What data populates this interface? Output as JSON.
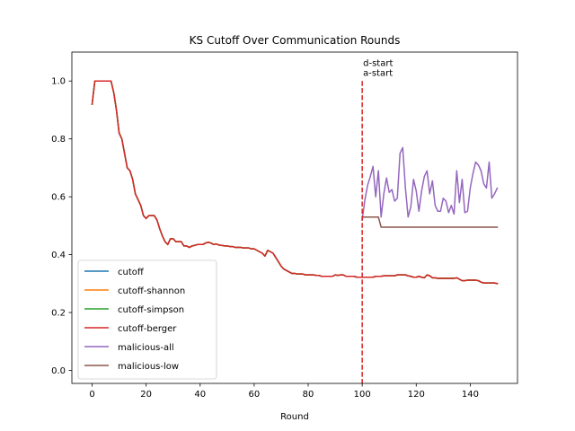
{
  "chart_data": {
    "type": "line",
    "title": "KS Cutoff Over Communication Rounds",
    "xlabel": "Round",
    "ylabel": "",
    "xlim": [
      -7.5,
      157.5
    ],
    "ylim": [
      -0.045,
      1.1
    ],
    "xticks": [
      0,
      20,
      40,
      60,
      80,
      100,
      120,
      140
    ],
    "yticks": [
      0.0,
      0.2,
      0.4,
      0.6,
      0.8,
      1.0
    ],
    "grid": false,
    "legend_position": "lower-left",
    "vline": {
      "x": 100,
      "color": "#d62728",
      "style": "dashed"
    },
    "annotations": [
      {
        "text": "d-start",
        "x": 100,
        "y": 1.065
      },
      {
        "text": "a-start",
        "x": 100,
        "y": 1.03
      }
    ],
    "series": [
      {
        "name": "cutoff",
        "color": "#1f77b4",
        "ref": "main"
      },
      {
        "name": "cutoff-shannon",
        "color": "#ff7f0e",
        "ref": "main"
      },
      {
        "name": "cutoff-simpson",
        "color": "#2ca02c",
        "ref": "main"
      },
      {
        "name": "cutoff-berger",
        "color": "#d62728",
        "ref": "main"
      },
      {
        "name": "malicious-all",
        "color": "#9467bd",
        "x": [
          100,
          101,
          102,
          103,
          104,
          105,
          106,
          107,
          108,
          109,
          110,
          111,
          112,
          113,
          114,
          115,
          116,
          117,
          118,
          119,
          120,
          121,
          122,
          123,
          124,
          125,
          126,
          127,
          128,
          129,
          130,
          131,
          132,
          133,
          134,
          135,
          136,
          137,
          138,
          139,
          140,
          141,
          142,
          143,
          144,
          145,
          146,
          147,
          148,
          149,
          150
        ],
        "values": [
          0.52,
          0.59,
          0.64,
          0.67,
          0.705,
          0.6,
          0.69,
          0.53,
          0.61,
          0.665,
          0.615,
          0.625,
          0.585,
          0.595,
          0.75,
          0.77,
          0.63,
          0.53,
          0.565,
          0.66,
          0.62,
          0.55,
          0.62,
          0.67,
          0.69,
          0.61,
          0.655,
          0.57,
          0.55,
          0.55,
          0.595,
          0.585,
          0.545,
          0.57,
          0.54,
          0.69,
          0.58,
          0.66,
          0.545,
          0.55,
          0.63,
          0.68,
          0.72,
          0.71,
          0.69,
          0.645,
          0.63,
          0.72,
          0.595,
          0.61,
          0.63
        ]
      },
      {
        "name": "malicious-low",
        "color": "#8c564b",
        "x": [
          100,
          106,
          107,
          150
        ],
        "values": [
          0.53,
          0.53,
          0.495,
          0.495
        ]
      }
    ],
    "main_series": {
      "x": [
        0,
        1,
        2,
        3,
        4,
        5,
        6,
        7,
        8,
        9,
        10,
        11,
        12,
        13,
        14,
        15,
        16,
        17,
        18,
        19,
        20,
        21,
        22,
        23,
        24,
        25,
        26,
        27,
        28,
        29,
        30,
        31,
        32,
        33,
        34,
        35,
        36,
        37,
        38,
        39,
        40,
        41,
        42,
        43,
        44,
        45,
        46,
        47,
        48,
        49,
        50,
        51,
        52,
        53,
        54,
        55,
        56,
        57,
        58,
        59,
        60,
        61,
        62,
        63,
        64,
        65,
        66,
        67,
        68,
        69,
        70,
        71,
        72,
        73,
        74,
        75,
        76,
        77,
        78,
        79,
        80,
        81,
        82,
        83,
        84,
        85,
        86,
        87,
        88,
        89,
        90,
        91,
        92,
        93,
        94,
        95,
        96,
        97,
        98,
        99,
        100,
        101,
        102,
        103,
        104,
        105,
        106,
        107,
        108,
        109,
        110,
        111,
        112,
        113,
        114,
        115,
        116,
        117,
        118,
        119,
        120,
        121,
        122,
        123,
        124,
        125,
        126,
        127,
        128,
        129,
        130,
        131,
        132,
        133,
        134,
        135,
        136,
        137,
        138,
        139,
        140,
        141,
        142,
        143,
        144,
        145,
        146,
        147,
        148,
        149,
        150
      ],
      "values": [
        0.92,
        1.0,
        1.0,
        1.0,
        1.0,
        1.0,
        1.0,
        1.0,
        0.96,
        0.9,
        0.82,
        0.8,
        0.75,
        0.7,
        0.69,
        0.66,
        0.61,
        0.59,
        0.57,
        0.535,
        0.525,
        0.535,
        0.535,
        0.535,
        0.52,
        0.49,
        0.465,
        0.445,
        0.435,
        0.455,
        0.455,
        0.445,
        0.445,
        0.445,
        0.43,
        0.43,
        0.425,
        0.43,
        0.432,
        0.435,
        0.435,
        0.435,
        0.44,
        0.443,
        0.44,
        0.435,
        0.437,
        0.433,
        0.432,
        0.43,
        0.43,
        0.428,
        0.428,
        0.425,
        0.425,
        0.425,
        0.423,
        0.423,
        0.423,
        0.42,
        0.42,
        0.415,
        0.41,
        0.405,
        0.395,
        0.415,
        0.41,
        0.405,
        0.39,
        0.375,
        0.36,
        0.35,
        0.345,
        0.34,
        0.335,
        0.335,
        0.333,
        0.333,
        0.333,
        0.33,
        0.33,
        0.33,
        0.33,
        0.328,
        0.328,
        0.325,
        0.325,
        0.325,
        0.325,
        0.325,
        0.33,
        0.328,
        0.33,
        0.33,
        0.325,
        0.325,
        0.325,
        0.325,
        0.322,
        0.322,
        0.322,
        0.322,
        0.322,
        0.322,
        0.322,
        0.325,
        0.325,
        0.325,
        0.327,
        0.327,
        0.327,
        0.327,
        0.327,
        0.33,
        0.33,
        0.33,
        0.33,
        0.327,
        0.325,
        0.322,
        0.322,
        0.325,
        0.322,
        0.32,
        0.33,
        0.327,
        0.32,
        0.32,
        0.318,
        0.318,
        0.318,
        0.318,
        0.318,
        0.318,
        0.318,
        0.32,
        0.315,
        0.31,
        0.31,
        0.312,
        0.312,
        0.312,
        0.312,
        0.31,
        0.305,
        0.302,
        0.302,
        0.302,
        0.302,
        0.302,
        0.3
      ]
    }
  }
}
